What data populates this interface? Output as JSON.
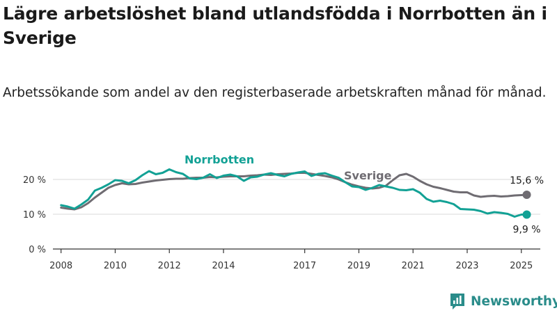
{
  "title": "Lägre arbetslöshet bland utlandsfödda i Norrbotten än i Sverige",
  "subtitle": "Arbetssökande som andel av den registerbaserade arbetskraften månad för månad.",
  "brand": "Newsworthy",
  "colors": {
    "norrbotten": "#12a195",
    "sverige": "#6f6c72",
    "grid": "#d9d9d9"
  },
  "chart_data": {
    "type": "line",
    "ylim": [
      0,
      25
    ],
    "yticks": [
      0,
      10,
      20
    ],
    "ytick_labels": [
      "0 %",
      "10 %",
      "20 %"
    ],
    "xlim": [
      2007.7,
      2025.7
    ],
    "xticks": [
      2008,
      2010,
      2012,
      2014,
      2017,
      2019,
      2021,
      2023,
      2025
    ],
    "xtick_labels": [
      "2008",
      "2010",
      "2012",
      "2014",
      "2017",
      "2019",
      "2021",
      "2023",
      "2025"
    ],
    "grid": true,
    "series": [
      {
        "name": "Norrbotten",
        "color": "#12a195",
        "end_label": "9,9 %",
        "x": [
          2008.0,
          2008.25,
          2008.5,
          2008.75,
          2009.0,
          2009.25,
          2009.5,
          2009.75,
          2010.0,
          2010.25,
          2010.5,
          2010.75,
          2011.0,
          2011.25,
          2011.5,
          2011.75,
          2012.0,
          2012.25,
          2012.5,
          2012.75,
          2013.0,
          2013.25,
          2013.5,
          2013.75,
          2014.0,
          2014.25,
          2014.5,
          2014.75,
          2015.0,
          2015.25,
          2015.5,
          2015.75,
          2016.0,
          2016.25,
          2016.5,
          2016.75,
          2017.0,
          2017.25,
          2017.5,
          2017.75,
          2018.0,
          2018.25,
          2018.5,
          2018.75,
          2019.0,
          2019.25,
          2019.5,
          2019.75,
          2020.0,
          2020.25,
          2020.5,
          2020.75,
          2021.0,
          2021.25,
          2021.5,
          2021.75,
          2022.0,
          2022.25,
          2022.5,
          2022.75,
          2023.0,
          2023.25,
          2023.5,
          2023.75,
          2024.0,
          2024.25,
          2024.5,
          2024.75,
          2025.0,
          2025.2
        ],
        "y": [
          12.6,
          12.2,
          11.6,
          12.8,
          14.2,
          16.8,
          17.6,
          18.6,
          19.8,
          19.6,
          18.9,
          19.8,
          21.2,
          22.4,
          21.5,
          21.9,
          22.9,
          22.1,
          21.6,
          20.3,
          20.1,
          20.5,
          21.5,
          20.4,
          21.1,
          21.4,
          20.9,
          19.6,
          20.6,
          20.8,
          21.4,
          21.8,
          21.3,
          20.9,
          21.6,
          22.0,
          22.3,
          21.0,
          21.6,
          21.8,
          21.1,
          20.5,
          19.2,
          18.0,
          17.8,
          17.0,
          17.6,
          18.4,
          18.0,
          17.6,
          17.0,
          16.9,
          17.2,
          16.2,
          14.4,
          13.6,
          13.9,
          13.5,
          12.9,
          11.5,
          11.4,
          11.3,
          10.9,
          10.2,
          10.6,
          10.4,
          10.1,
          9.3,
          9.9,
          9.9
        ]
      },
      {
        "name": "Sverige",
        "color": "#6f6c72",
        "end_label": "15,6 %",
        "x": [
          2008.0,
          2008.25,
          2008.5,
          2008.75,
          2009.0,
          2009.25,
          2009.5,
          2009.75,
          2010.0,
          2010.25,
          2010.5,
          2010.75,
          2011.0,
          2011.25,
          2011.5,
          2011.75,
          2012.0,
          2012.25,
          2012.5,
          2012.75,
          2013.0,
          2013.25,
          2013.5,
          2013.75,
          2014.0,
          2014.25,
          2014.5,
          2014.75,
          2015.0,
          2015.25,
          2015.5,
          2015.75,
          2016.0,
          2016.25,
          2016.5,
          2016.75,
          2017.0,
          2017.25,
          2017.5,
          2017.75,
          2018.0,
          2018.25,
          2018.5,
          2018.75,
          2019.0,
          2019.25,
          2019.5,
          2019.75,
          2020.0,
          2020.25,
          2020.5,
          2020.75,
          2021.0,
          2021.25,
          2021.5,
          2021.75,
          2022.0,
          2022.25,
          2022.5,
          2022.75,
          2023.0,
          2023.25,
          2023.5,
          2023.75,
          2024.0,
          2024.25,
          2024.5,
          2024.75,
          2025.0,
          2025.2
        ],
        "y": [
          11.9,
          11.6,
          11.4,
          12.0,
          13.2,
          14.8,
          16.2,
          17.6,
          18.4,
          18.9,
          18.6,
          18.7,
          19.1,
          19.4,
          19.7,
          19.9,
          20.1,
          20.2,
          20.2,
          20.4,
          20.5,
          20.5,
          20.7,
          20.6,
          20.8,
          20.9,
          20.9,
          20.9,
          21.1,
          21.2,
          21.4,
          21.3,
          21.5,
          21.6,
          21.7,
          21.9,
          21.9,
          21.6,
          21.3,
          21.0,
          20.6,
          20.0,
          19.2,
          18.5,
          18.0,
          17.6,
          17.4,
          17.6,
          18.2,
          19.8,
          21.2,
          21.6,
          20.8,
          19.6,
          18.6,
          17.9,
          17.5,
          17.0,
          16.5,
          16.3,
          16.3,
          15.4,
          15.0,
          15.2,
          15.3,
          15.1,
          15.2,
          15.4,
          15.5,
          15.6
        ]
      }
    ]
  }
}
